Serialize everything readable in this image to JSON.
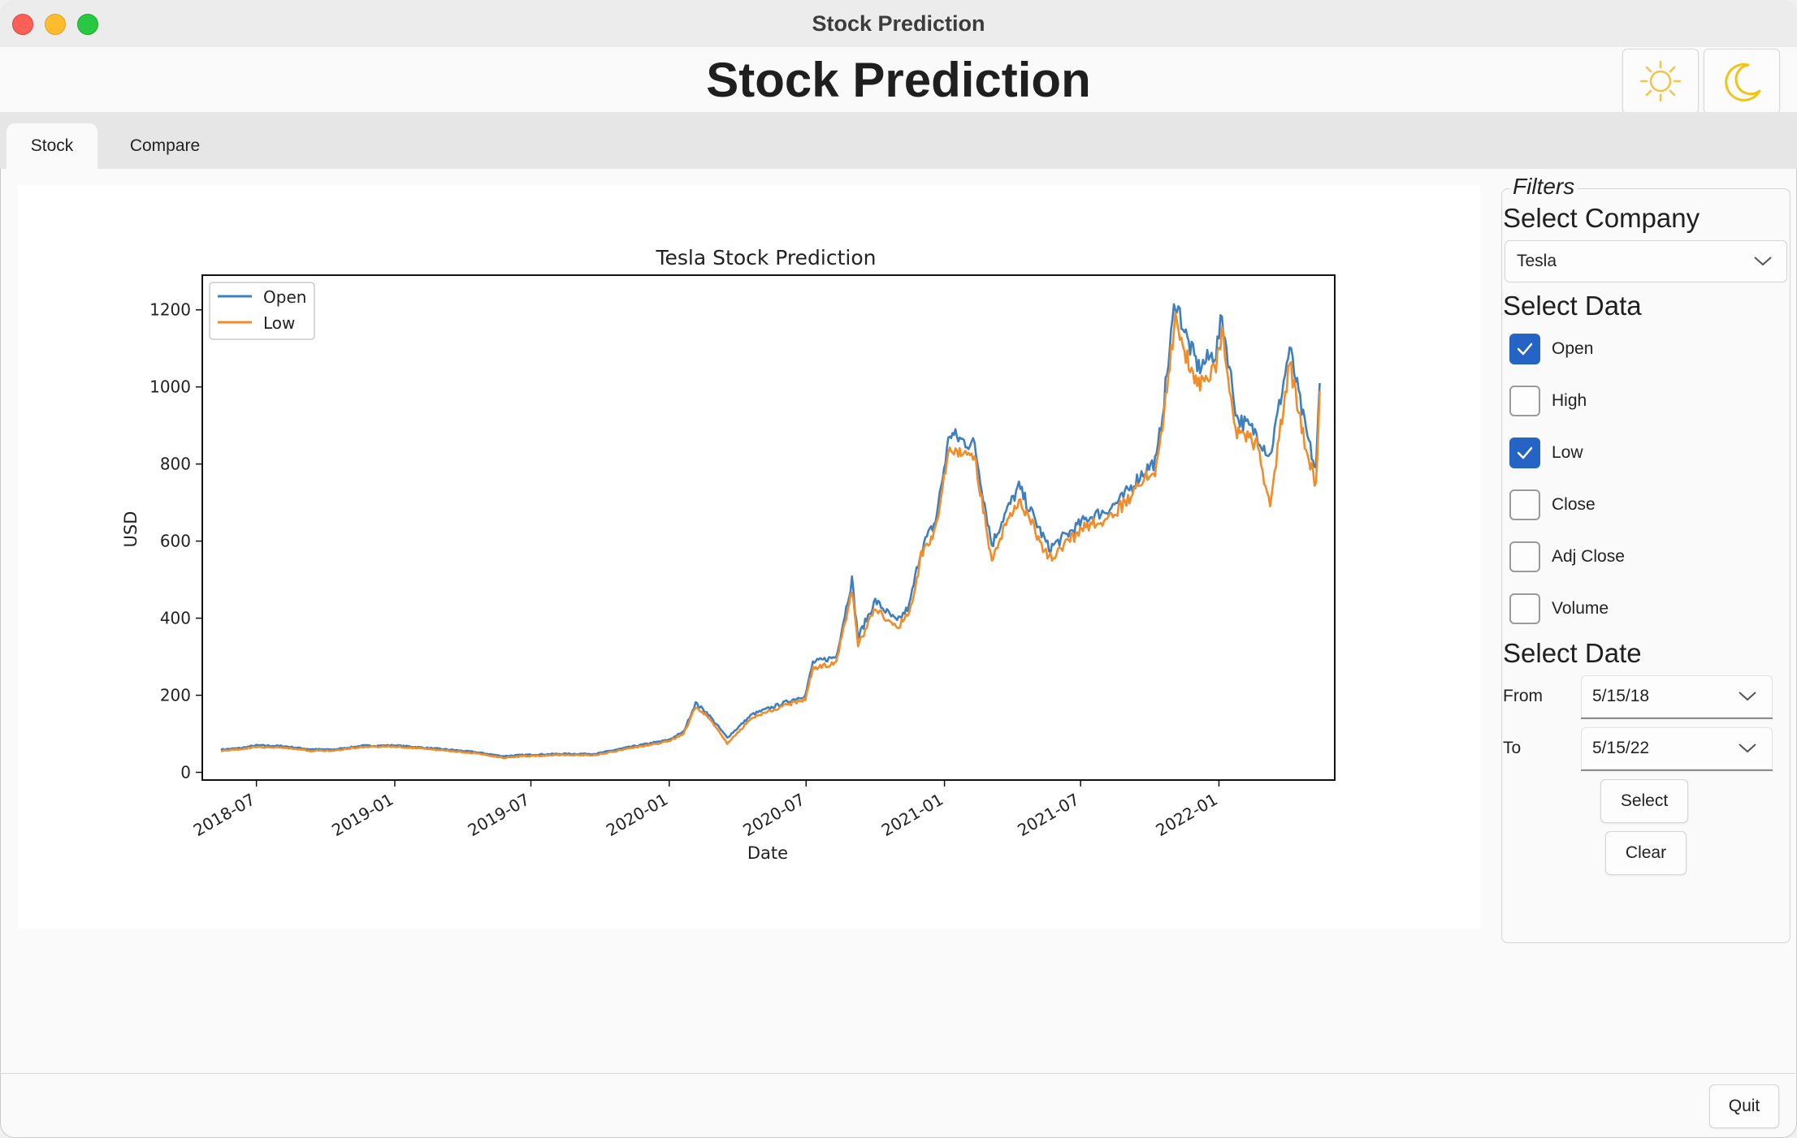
{
  "window": {
    "title": "Stock Prediction"
  },
  "header": {
    "title": "Stock Prediction"
  },
  "tabs": [
    {
      "label": "Stock",
      "active": true
    },
    {
      "label": "Compare",
      "active": false
    }
  ],
  "filters": {
    "legend": "Filters",
    "company": {
      "heading": "Select Company",
      "selected": "Tesla"
    },
    "data": {
      "heading": "Select Data",
      "options": [
        {
          "label": "Open",
          "checked": true
        },
        {
          "label": "High",
          "checked": false
        },
        {
          "label": "Low",
          "checked": true
        },
        {
          "label": "Close",
          "checked": false
        },
        {
          "label": "Adj Close",
          "checked": false
        },
        {
          "label": "Volume",
          "checked": false
        }
      ]
    },
    "date": {
      "heading": "Select Date",
      "from_label": "From",
      "from_value": "5/15/18",
      "to_label": "To",
      "to_value": "5/15/22"
    },
    "select_label": "Select",
    "clear_label": "Clear"
  },
  "footer": {
    "quit_label": "Quit"
  },
  "colors": {
    "open": "#3e7fbf",
    "low": "#f28c28",
    "accent": "#2563c4",
    "sun": "#f3c34a",
    "moon": "#f0c419"
  },
  "chart_data": {
    "type": "line",
    "title": "Tesla Stock Prediction",
    "xlabel": "Date",
    "ylabel": "USD",
    "x_ticks": [
      "2018-07",
      "2019-01",
      "2019-07",
      "2020-01",
      "2020-07",
      "2021-01",
      "2021-07",
      "2022-01"
    ],
    "y_ticks": [
      0,
      200,
      400,
      600,
      800,
      1000,
      1200
    ],
    "ylim": [
      -20,
      1290
    ],
    "xlim": [
      "2018-04-20",
      "2022-06-04"
    ],
    "legend_position": "top-left",
    "series": [
      {
        "name": "Open",
        "color": "#3e7fbf",
        "points": [
          [
            "2018-05-15",
            59
          ],
          [
            "2018-06-10",
            63
          ],
          [
            "2018-07-01",
            70
          ],
          [
            "2018-08-05",
            68
          ],
          [
            "2018-09-10",
            60
          ],
          [
            "2018-10-10",
            59
          ],
          [
            "2018-11-20",
            69
          ],
          [
            "2019-01-01",
            70
          ],
          [
            "2019-02-15",
            63
          ],
          [
            "2019-03-20",
            58
          ],
          [
            "2019-04-20",
            52
          ],
          [
            "2019-05-25",
            42
          ],
          [
            "2019-06-20",
            45
          ],
          [
            "2019-08-10",
            48
          ],
          [
            "2019-09-25",
            48
          ],
          [
            "2019-11-10",
            66
          ],
          [
            "2019-12-31",
            84
          ],
          [
            "2020-01-20",
            105
          ],
          [
            "2020-02-05",
            180
          ],
          [
            "2020-02-20",
            155
          ],
          [
            "2020-03-18",
            90
          ],
          [
            "2020-04-20",
            150
          ],
          [
            "2020-06-01",
            180
          ],
          [
            "2020-06-30",
            200
          ],
          [
            "2020-07-10",
            285
          ],
          [
            "2020-08-10",
            300
          ],
          [
            "2020-08-31",
            500
          ],
          [
            "2020-09-08",
            350
          ],
          [
            "2020-10-01",
            445
          ],
          [
            "2020-10-30",
            390
          ],
          [
            "2020-11-15",
            430
          ],
          [
            "2020-12-01",
            580
          ],
          [
            "2020-12-20",
            650
          ],
          [
            "2021-01-08",
            880
          ],
          [
            "2021-01-25",
            860
          ],
          [
            "2021-02-10",
            850
          ],
          [
            "2021-03-05",
            590
          ],
          [
            "2021-03-20",
            660
          ],
          [
            "2021-04-10",
            740
          ],
          [
            "2021-05-20",
            580
          ],
          [
            "2021-06-15",
            620
          ],
          [
            "2021-07-10",
            660
          ],
          [
            "2021-08-05",
            680
          ],
          [
            "2021-08-25",
            710
          ],
          [
            "2021-09-20",
            775
          ],
          [
            "2021-10-10",
            810
          ],
          [
            "2021-10-22",
            1000
          ],
          [
            "2021-11-04",
            1230
          ],
          [
            "2021-11-20",
            1120
          ],
          [
            "2021-12-05",
            1050
          ],
          [
            "2021-12-28",
            1090
          ],
          [
            "2022-01-05",
            1180
          ],
          [
            "2022-01-25",
            920
          ],
          [
            "2022-02-20",
            880
          ],
          [
            "2022-03-10",
            820
          ],
          [
            "2022-04-05",
            1100
          ],
          [
            "2022-04-25",
            900
          ],
          [
            "2022-05-10",
            780
          ],
          [
            "2022-05-15",
            1010
          ]
        ]
      },
      {
        "name": "Low",
        "color": "#f28c28",
        "points": [
          [
            "2018-05-15",
            56
          ],
          [
            "2018-06-10",
            60
          ],
          [
            "2018-07-01",
            66
          ],
          [
            "2018-08-05",
            64
          ],
          [
            "2018-09-10",
            56
          ],
          [
            "2018-10-10",
            56
          ],
          [
            "2018-11-20",
            66
          ],
          [
            "2019-01-01",
            67
          ],
          [
            "2019-02-15",
            60
          ],
          [
            "2019-03-20",
            55
          ],
          [
            "2019-04-20",
            49
          ],
          [
            "2019-05-25",
            38
          ],
          [
            "2019-06-20",
            42
          ],
          [
            "2019-08-10",
            45
          ],
          [
            "2019-09-25",
            45
          ],
          [
            "2019-11-10",
            62
          ],
          [
            "2019-12-31",
            80
          ],
          [
            "2020-01-20",
            100
          ],
          [
            "2020-02-05",
            170
          ],
          [
            "2020-02-20",
            148
          ],
          [
            "2020-03-18",
            75
          ],
          [
            "2020-04-20",
            142
          ],
          [
            "2020-06-01",
            172
          ],
          [
            "2020-06-30",
            190
          ],
          [
            "2020-07-10",
            270
          ],
          [
            "2020-08-10",
            285
          ],
          [
            "2020-08-31",
            470
          ],
          [
            "2020-09-08",
            330
          ],
          [
            "2020-10-01",
            425
          ],
          [
            "2020-10-30",
            375
          ],
          [
            "2020-11-15",
            410
          ],
          [
            "2020-12-01",
            560
          ],
          [
            "2020-12-20",
            625
          ],
          [
            "2021-01-08",
            840
          ],
          [
            "2021-01-25",
            830
          ],
          [
            "2021-02-10",
            820
          ],
          [
            "2021-03-05",
            545
          ],
          [
            "2021-03-20",
            630
          ],
          [
            "2021-04-10",
            710
          ],
          [
            "2021-05-20",
            555
          ],
          [
            "2021-06-15",
            600
          ],
          [
            "2021-07-10",
            640
          ],
          [
            "2021-08-05",
            660
          ],
          [
            "2021-08-25",
            690
          ],
          [
            "2021-09-20",
            755
          ],
          [
            "2021-10-10",
            790
          ],
          [
            "2021-10-22",
            960
          ],
          [
            "2021-11-04",
            1180
          ],
          [
            "2021-11-20",
            1070
          ],
          [
            "2021-12-05",
            1000
          ],
          [
            "2021-12-28",
            1050
          ],
          [
            "2022-01-05",
            1140
          ],
          [
            "2022-01-25",
            880
          ],
          [
            "2022-02-20",
            850
          ],
          [
            "2022-03-10",
            700
          ],
          [
            "2022-04-05",
            1060
          ],
          [
            "2022-04-25",
            860
          ],
          [
            "2022-05-10",
            740
          ],
          [
            "2022-05-15",
            990
          ]
        ]
      }
    ]
  }
}
